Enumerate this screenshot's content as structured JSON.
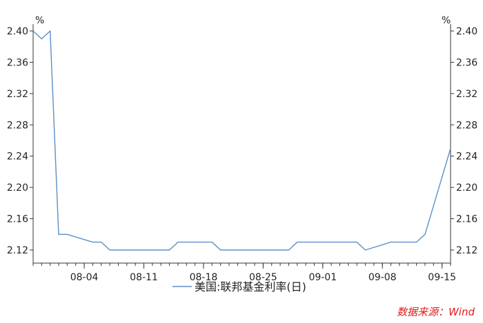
{
  "chart_data": {
    "type": "line",
    "left_unit": "%",
    "right_unit": "%",
    "y_ticks": [
      "2.40",
      "2.36",
      "2.32",
      "2.28",
      "2.24",
      "2.20",
      "2.16",
      "2.12"
    ],
    "ylim": [
      2.12,
      2.4
    ],
    "x_tick_labels": [
      "08-04",
      "08-11",
      "08-18",
      "08-25",
      "09-01",
      "09-08",
      "09-15"
    ],
    "series": [
      {
        "name": "美国:联邦基金利率(日)",
        "color": "#5b8fc6",
        "points": [
          [
            "07-29",
            2.4
          ],
          [
            "07-30",
            2.39
          ],
          [
            "07-31",
            2.4
          ],
          [
            "08-01",
            2.14
          ],
          [
            "08-02",
            2.14
          ],
          [
            "08-05",
            2.13
          ],
          [
            "08-06",
            2.13
          ],
          [
            "08-07",
            2.12
          ],
          [
            "08-08",
            2.12
          ],
          [
            "08-09",
            2.12
          ],
          [
            "08-12",
            2.12
          ],
          [
            "08-13",
            2.12
          ],
          [
            "08-14",
            2.12
          ],
          [
            "08-15",
            2.13
          ],
          [
            "08-16",
            2.13
          ],
          [
            "08-19",
            2.13
          ],
          [
            "08-20",
            2.12
          ],
          [
            "08-21",
            2.12
          ],
          [
            "08-22",
            2.12
          ],
          [
            "08-23",
            2.12
          ],
          [
            "08-26",
            2.12
          ],
          [
            "08-27",
            2.12
          ],
          [
            "08-28",
            2.12
          ],
          [
            "08-29",
            2.13
          ],
          [
            "08-30",
            2.13
          ],
          [
            "09-03",
            2.13
          ],
          [
            "09-04",
            2.13
          ],
          [
            "09-05",
            2.13
          ],
          [
            "09-06",
            2.12
          ],
          [
            "09-09",
            2.13
          ],
          [
            "09-10",
            2.13
          ],
          [
            "09-11",
            2.13
          ],
          [
            "09-12",
            2.13
          ],
          [
            "09-13",
            2.14
          ],
          [
            "09-16",
            2.25
          ]
        ]
      }
    ],
    "legend_position": "bottom-center",
    "grid": false,
    "source": "数据来源：Wind"
  }
}
